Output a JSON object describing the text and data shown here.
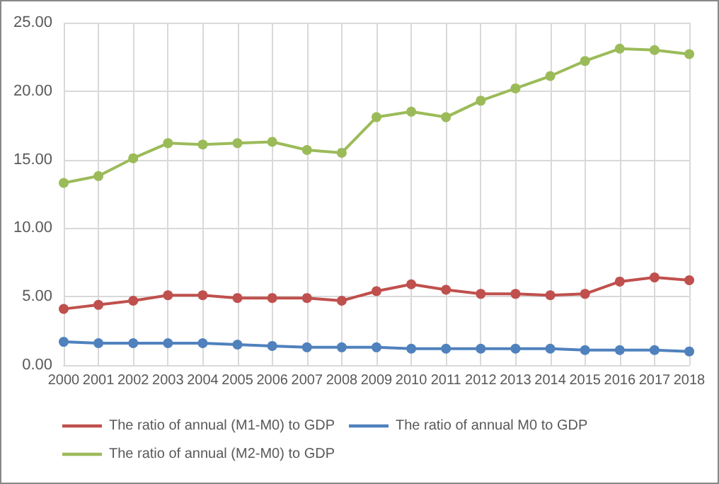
{
  "chart_data": {
    "type": "line",
    "categories": [
      "2000",
      "2001",
      "2002",
      "2003",
      "2004",
      "2005",
      "2006",
      "2007",
      "2008",
      "2009",
      "2010",
      "2011",
      "2012",
      "2013",
      "2014",
      "2015",
      "2016",
      "2017",
      "2018"
    ],
    "series": [
      {
        "name": "The ratio of annual (M1-M0) to GDP",
        "color": "#c0504d",
        "values": [
          4.1,
          4.4,
          4.7,
          5.1,
          5.1,
          4.9,
          4.9,
          4.9,
          4.7,
          5.4,
          5.9,
          5.5,
          5.2,
          5.2,
          5.1,
          5.2,
          6.1,
          6.4,
          6.2
        ]
      },
      {
        "name": "The ratio of annual M0 to GDP",
        "color": "#4f81bd",
        "values": [
          1.7,
          1.6,
          1.6,
          1.6,
          1.6,
          1.5,
          1.4,
          1.3,
          1.3,
          1.3,
          1.2,
          1.2,
          1.2,
          1.2,
          1.2,
          1.1,
          1.1,
          1.1,
          1.0
        ]
      },
      {
        "name": "The ratio of annual (M2-M0) to GDP",
        "color": "#9bbb59",
        "values": [
          13.3,
          13.8,
          15.1,
          16.2,
          16.1,
          16.2,
          16.3,
          15.7,
          15.5,
          18.1,
          18.5,
          18.1,
          19.3,
          20.2,
          21.1,
          22.2,
          23.1,
          23.0,
          22.7
        ]
      }
    ],
    "ylim": [
      0,
      25
    ],
    "yticks": [
      {
        "value": 0,
        "label": "0.00"
      },
      {
        "value": 5,
        "label": "5.00"
      },
      {
        "value": 10,
        "label": "10.00"
      },
      {
        "value": 15,
        "label": "15.00"
      },
      {
        "value": 20,
        "label": "20.00"
      },
      {
        "value": 25,
        "label": "25.00"
      }
    ],
    "grid": true,
    "legend": "bottom",
    "marker": "circle",
    "line_style": "solid"
  }
}
